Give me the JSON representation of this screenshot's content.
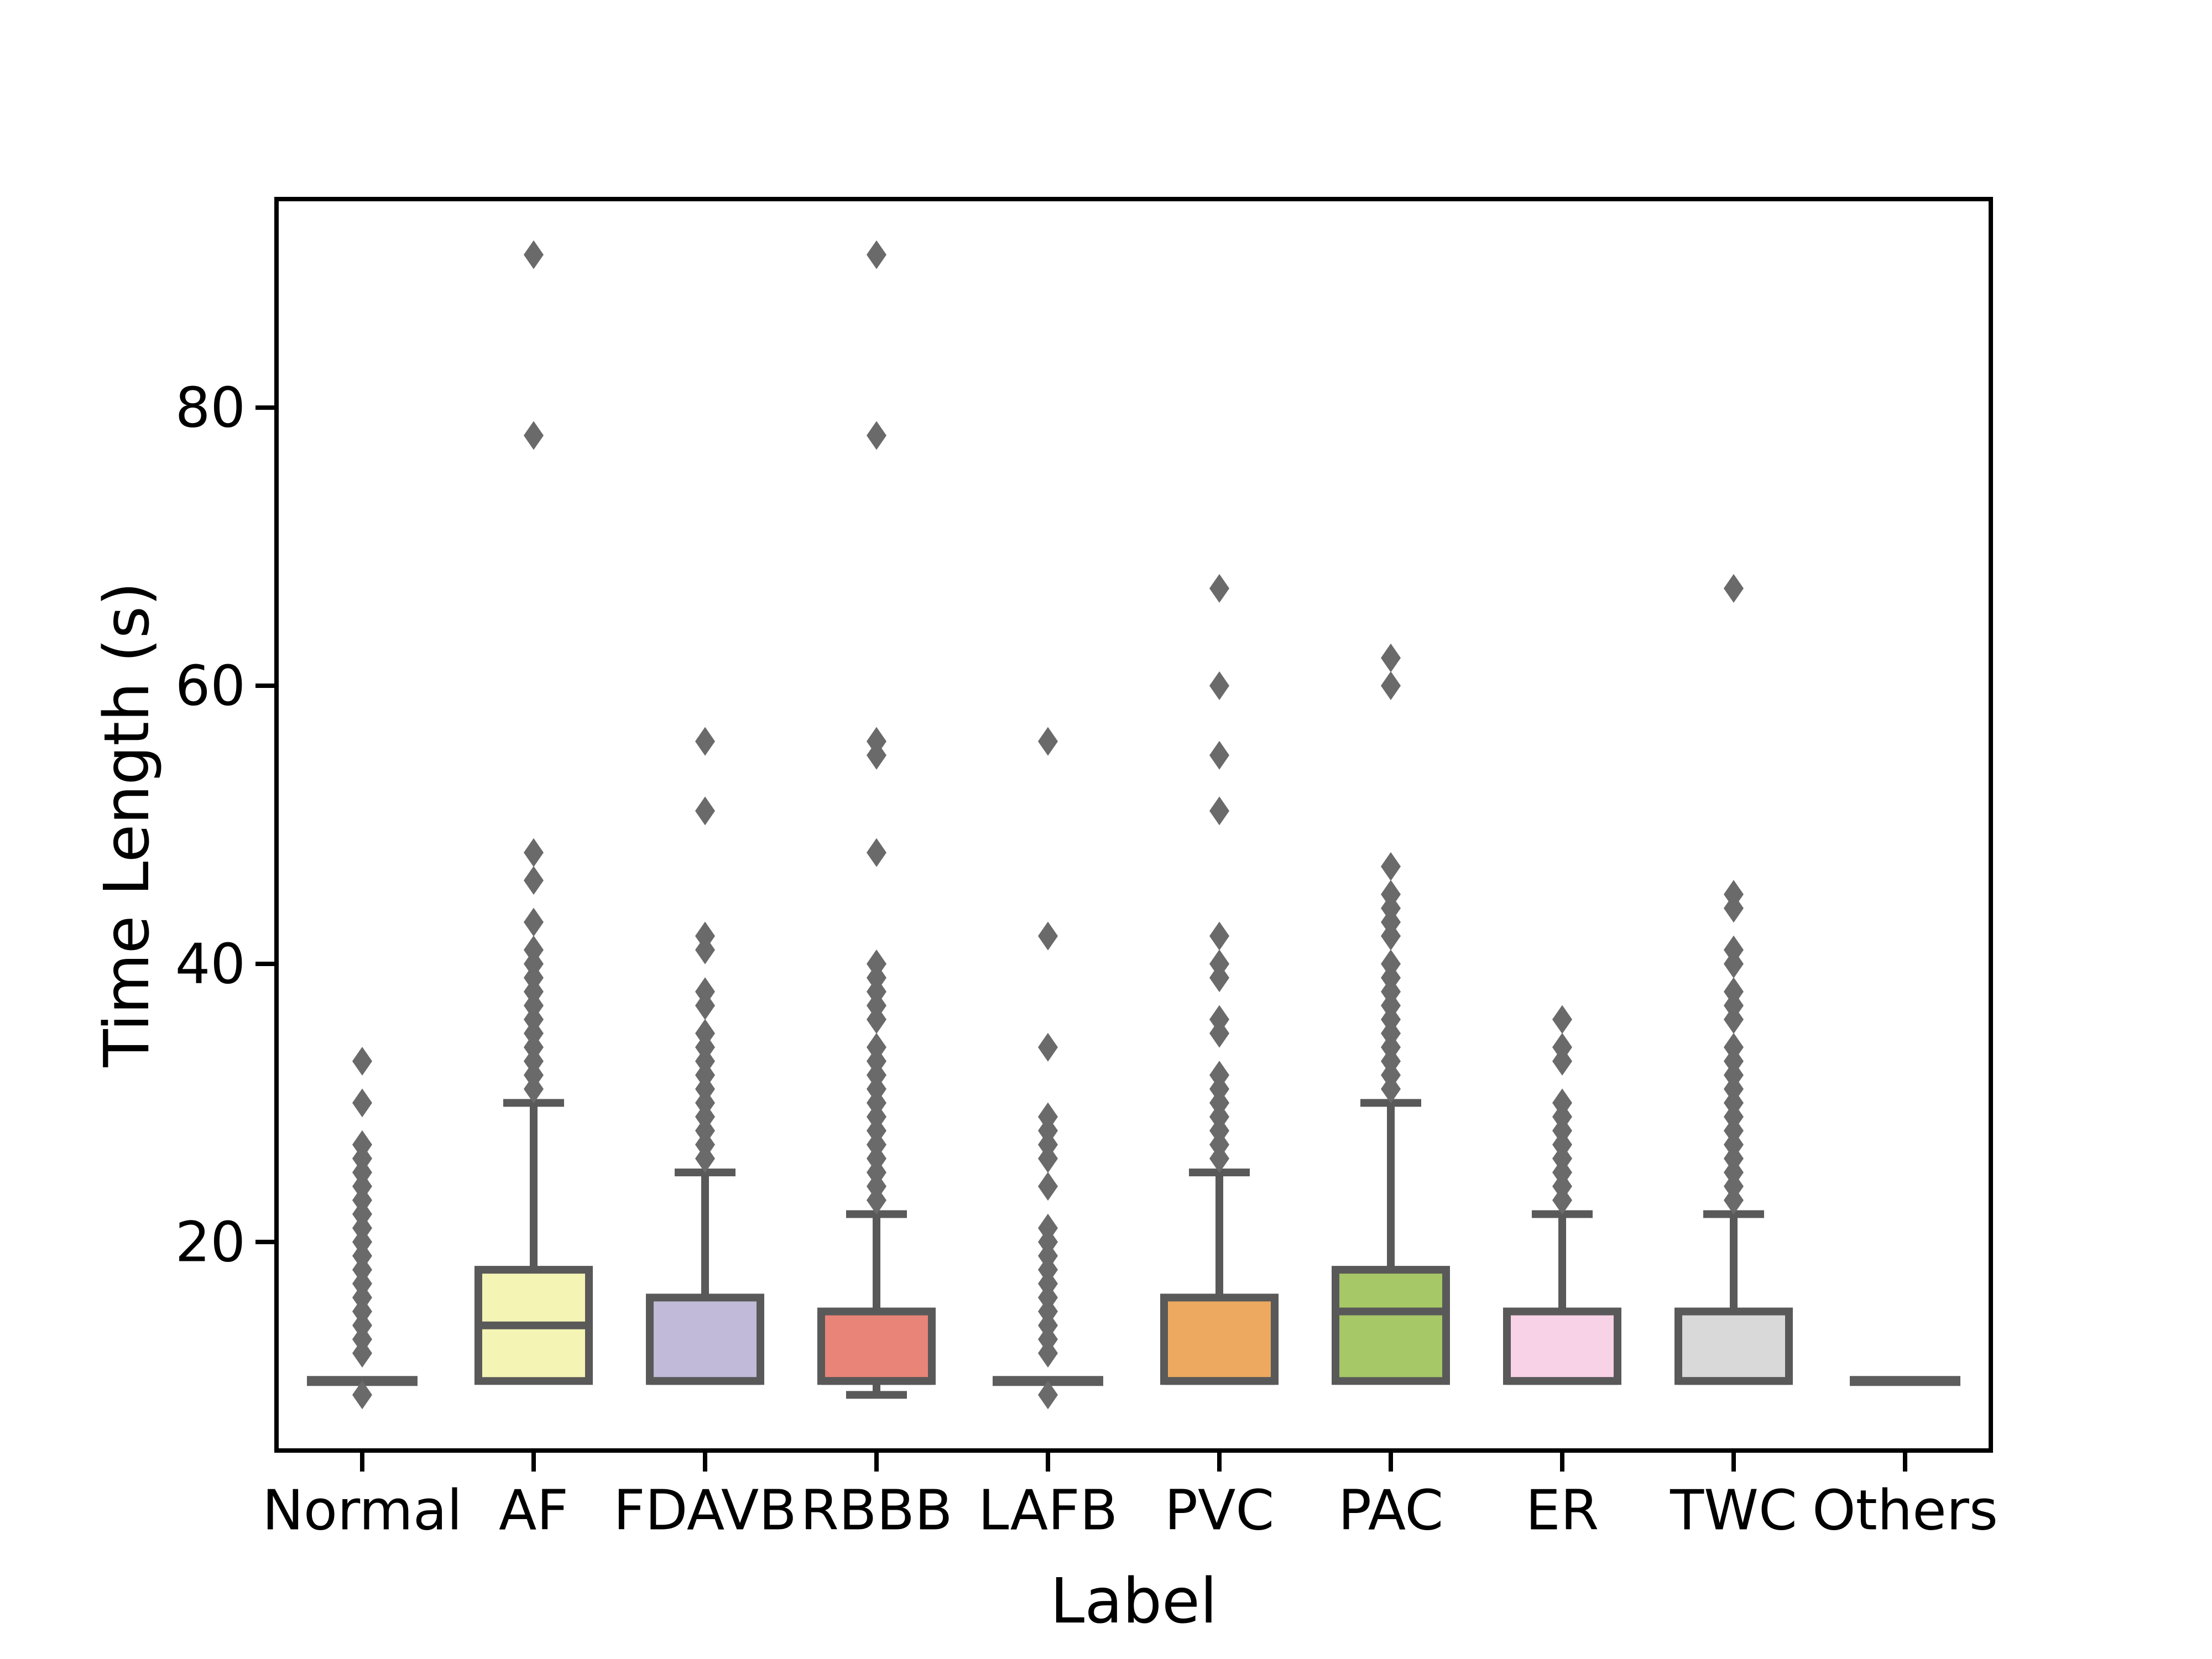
{
  "chart_data": {
    "type": "box",
    "xlabel": "Label",
    "ylabel": "Time Length (s)",
    "ylim": [
      5,
      95
    ],
    "yticks": [
      20,
      40,
      60,
      80
    ],
    "grid": false,
    "legend": "none",
    "orientation": "vertical",
    "categories": [
      "Normal",
      "AF",
      "FDAVB",
      "RBBB",
      "LAFB",
      "PVC",
      "PAC",
      "ER",
      "TWC",
      "Others"
    ],
    "series": [
      {
        "label": "Normal",
        "fill": "#8dd3c7",
        "degenerate": true,
        "q1": 10,
        "median": 10,
        "q3": 10,
        "whisker_low": 10,
        "whisker_high": 10,
        "outliers_low": [
          9
        ],
        "outliers_high": [
          12,
          13,
          14,
          15,
          16,
          17,
          18,
          19,
          20,
          21,
          22,
          23,
          24,
          25,
          26,
          27,
          30,
          33
        ]
      },
      {
        "label": "AF",
        "fill": "#f4f4b5",
        "degenerate": false,
        "q1": 10,
        "median": 14,
        "q3": 18,
        "whisker_low": 10,
        "whisker_high": 30,
        "outliers_low": [],
        "outliers_high": [
          31,
          32,
          33,
          34,
          35,
          36,
          37,
          38,
          39,
          40,
          41,
          43,
          46,
          48,
          78,
          91
        ]
      },
      {
        "label": "FDAVB",
        "fill": "#c1bbd9",
        "degenerate": false,
        "q1": 10,
        "median": 10,
        "q3": 16,
        "whisker_low": 10,
        "whisker_high": 25,
        "outliers_low": [],
        "outliers_high": [
          26,
          27,
          28,
          29,
          30,
          31,
          32,
          33,
          34,
          35,
          37,
          38,
          41,
          42,
          51,
          56
        ]
      },
      {
        "label": "RBBB",
        "fill": "#e98478",
        "degenerate": false,
        "q1": 10,
        "median": 10,
        "q3": 15,
        "whisker_low": 9,
        "whisker_high": 22,
        "outliers_low": [],
        "outliers_high": [
          23,
          24,
          25,
          26,
          27,
          28,
          29,
          30,
          31,
          32,
          33,
          34,
          36,
          37,
          38,
          39,
          40,
          48,
          55,
          56,
          78,
          91
        ]
      },
      {
        "label": "LAFB",
        "fill": "#8fb6d4",
        "degenerate": true,
        "q1": 10,
        "median": 10,
        "q3": 10,
        "whisker_low": 10,
        "whisker_high": 10,
        "outliers_low": [
          9
        ],
        "outliers_high": [
          12,
          13,
          14,
          15,
          16,
          17,
          18,
          19,
          20,
          21,
          24,
          26,
          27,
          28,
          29,
          34,
          42,
          56
        ]
      },
      {
        "label": "PVC",
        "fill": "#eca95f",
        "degenerate": false,
        "q1": 10,
        "median": 10,
        "q3": 16,
        "whisker_low": 10,
        "whisker_high": 25,
        "outliers_low": [],
        "outliers_high": [
          26,
          27,
          28,
          29,
          30,
          31,
          32,
          35,
          36,
          39,
          40,
          42,
          51,
          55,
          60,
          67
        ]
      },
      {
        "label": "PAC",
        "fill": "#a7c867",
        "degenerate": false,
        "q1": 10,
        "median": 15,
        "q3": 18,
        "whisker_low": 10,
        "whisker_high": 30,
        "outliers_low": [],
        "outliers_high": [
          31,
          32,
          33,
          34,
          35,
          36,
          37,
          38,
          39,
          40,
          42,
          43,
          44,
          45,
          47,
          60,
          62
        ]
      },
      {
        "label": "ER",
        "fill": "#f8d2e7",
        "degenerate": false,
        "q1": 10,
        "median": 10,
        "q3": 15,
        "whisker_low": 10,
        "whisker_high": 22,
        "outliers_low": [],
        "outliers_high": [
          23,
          24,
          25,
          26,
          27,
          28,
          29,
          30,
          33,
          34,
          36
        ]
      },
      {
        "label": "TWC",
        "fill": "#d9d9d9",
        "degenerate": false,
        "q1": 10,
        "median": 10,
        "q3": 15,
        "whisker_low": 10,
        "whisker_high": 22,
        "outliers_low": [],
        "outliers_high": [
          23,
          24,
          25,
          26,
          27,
          28,
          29,
          30,
          31,
          32,
          33,
          34,
          36,
          37,
          38,
          40,
          41,
          44,
          45,
          67
        ]
      },
      {
        "label": "Others",
        "fill": "#bc80bd",
        "degenerate": true,
        "q1": 10,
        "median": 10,
        "q3": 10,
        "whisker_low": 10,
        "whisker_high": 10,
        "outliers_low": [],
        "outliers_high": []
      }
    ]
  },
  "style": {
    "spine_color": "#000000",
    "box_edge_color": "#595959",
    "degenerate_line_color": "#5d5d5d",
    "flier_color": "#6a6a6a",
    "tick_label_color": "#000000"
  }
}
